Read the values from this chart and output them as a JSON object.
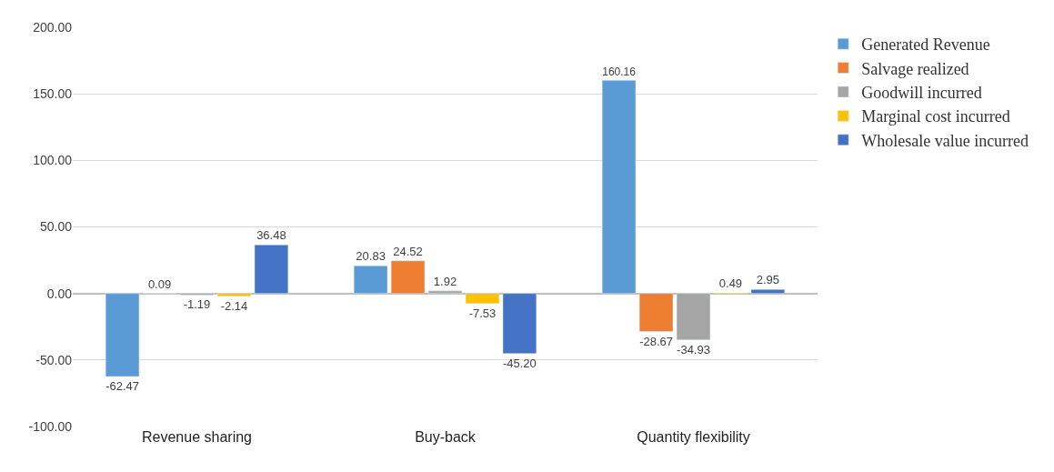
{
  "chart_data": {
    "type": "bar",
    "categories": [
      "Revenue sharing",
      "Buy-back",
      "Quantity flexibility"
    ],
    "series": [
      {
        "name": "Generated Revenue",
        "color": "#5b9bd5",
        "values": [
          -62.47,
          20.83,
          160.16
        ],
        "value_labels": [
          "-62.47",
          "20.83",
          "160.16"
        ]
      },
      {
        "name": "Salvage realized",
        "color": "#ed7d31",
        "values": [
          0.09,
          24.52,
          -28.67
        ],
        "value_labels": [
          "0.09",
          "24.52",
          "-28.67"
        ]
      },
      {
        "name": "Goodwill incurred",
        "color": "#a5a5a5",
        "values": [
          -1.19,
          1.92,
          -34.93
        ],
        "value_labels": [
          "-1.19",
          "1.92",
          "-34.93"
        ]
      },
      {
        "name": "Marginal cost incurred",
        "color": "#ffc000",
        "values": [
          -2.14,
          -7.53,
          0.49
        ],
        "value_labels": [
          "-2.14",
          "-7.53",
          "0.49"
        ]
      },
      {
        "name": "Wholesale value incurred",
        "color": "#4472c4",
        "values": [
          36.48,
          -45.2,
          2.95
        ],
        "value_labels": [
          "36.48",
          "-45.20",
          "2.95"
        ]
      }
    ],
    "ylim": [
      -100,
      200
    ],
    "yticks": [
      {
        "value": -100,
        "label": "-100.00"
      },
      {
        "value": -50,
        "label": "-50.00"
      },
      {
        "value": 0,
        "label": "0.00"
      },
      {
        "value": 50,
        "label": "50.00"
      },
      {
        "value": 100,
        "label": "100.00"
      },
      {
        "value": 150,
        "label": "150.00"
      },
      {
        "value": 200,
        "label": "200.00"
      }
    ],
    "grid": "y",
    "legend": "top right"
  }
}
